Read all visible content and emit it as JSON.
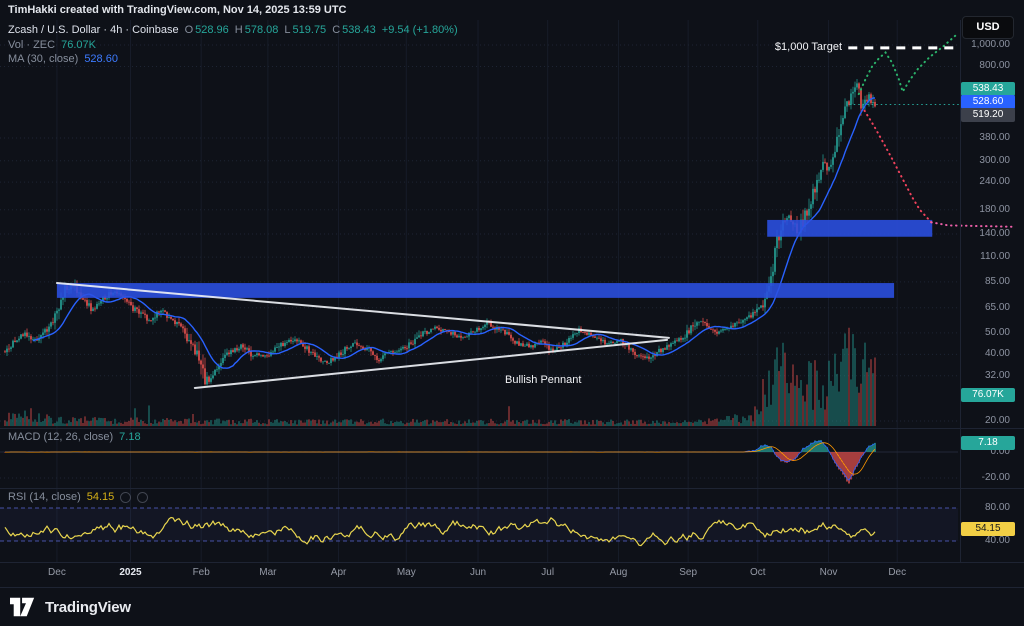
{
  "header": {
    "attribution": "TimHakki created with TradingView.com, Nov 14, 2025 13:59 UTC",
    "currency_button": "USD"
  },
  "legend": {
    "symbol": "Zcash / U.S. Dollar · 4h · Coinbase",
    "o_label": "O",
    "o": "528.96",
    "h_label": "H",
    "h": "578.08",
    "l_label": "L",
    "l": "519.75",
    "c_label": "C",
    "c": "538.43",
    "change": "+9.54 (+1.80%)",
    "volume_label": "Vol · ZEC",
    "volume_value": "76.07K",
    "ma_label": "MA (30, close)",
    "ma_value": "528.60"
  },
  "panes": {
    "macd": {
      "label": "MACD (12, 26, close)",
      "value": "7.18",
      "zero_label": "0.00",
      "minus_label": "-20.00"
    },
    "rsi": {
      "label": "RSI (14, close)",
      "value": "54.15",
      "upper_label": "80.00",
      "lower_label": "40.00",
      "icons": [
        "eye-icon",
        "more-icon"
      ]
    }
  },
  "price_axis": {
    "tags": [
      {
        "name": "last-price-tag",
        "text": "538.43",
        "bg": "#26a69a",
        "fg": "#ffffff"
      },
      {
        "name": "ma-price-tag",
        "text": "528.60",
        "bg": "#2962ff",
        "fg": "#ffffff"
      },
      {
        "name": "ref-price-tag",
        "text": "519.20",
        "bg": "#3c404b",
        "fg": "#ffffff"
      }
    ],
    "volume_tag": "76.07K",
    "macd_tag": "7.18",
    "rsi_tag": "54.15"
  },
  "footer": {
    "brand": "TradingView"
  },
  "chart_data": {
    "type": "candlestick",
    "symbol": "ZEC/USD",
    "interval": "4h",
    "exchange": "Coinbase",
    "scale": "log",
    "last": {
      "open": 528.96,
      "high": 578.08,
      "low": 519.75,
      "close": 538.43,
      "change_pct": 1.8,
      "change_abs": 9.54
    },
    "ma": {
      "period": 30,
      "value": 528.6
    },
    "volume_last": "76.07K",
    "y_ticks": [
      {
        "label": "1,000.00",
        "price": 1000
      },
      {
        "label": "800.00",
        "price": 800
      },
      {
        "label": "380.00",
        "price": 380
      },
      {
        "label": "300.00",
        "price": 300
      },
      {
        "label": "240.00",
        "price": 240
      },
      {
        "label": "180.00",
        "price": 180
      },
      {
        "label": "140.00",
        "price": 140
      },
      {
        "label": "110.00",
        "price": 110
      },
      {
        "label": "85.00",
        "price": 85
      },
      {
        "label": "65.00",
        "price": 65
      },
      {
        "label": "50.00",
        "price": 50
      },
      {
        "label": "40.00",
        "price": 40
      },
      {
        "label": "32.00",
        "price": 32
      },
      {
        "label": "20.00",
        "price": 20
      }
    ],
    "x_labels": [
      {
        "label": "Dec",
        "t": 0.0555,
        "bold": false
      },
      {
        "label": "2025",
        "t": 0.1326,
        "bold": true
      },
      {
        "label": "Feb",
        "t": 0.2067,
        "bold": false
      },
      {
        "label": "Mar",
        "t": 0.2766,
        "bold": false
      },
      {
        "label": "Apr",
        "t": 0.3507,
        "bold": false
      },
      {
        "label": "May",
        "t": 0.4217,
        "bold": false
      },
      {
        "label": "Jun",
        "t": 0.4969,
        "bold": false
      },
      {
        "label": "Jul",
        "t": 0.5699,
        "bold": false
      },
      {
        "label": "Aug",
        "t": 0.6441,
        "bold": false
      },
      {
        "label": "Sep",
        "t": 0.7171,
        "bold": false
      },
      {
        "label": "Oct",
        "t": 0.7901,
        "bold": false
      },
      {
        "label": "Nov",
        "t": 0.8643,
        "bold": false
      },
      {
        "label": "Dec",
        "t": 0.9363,
        "bold": false
      }
    ],
    "close_path": [
      [
        0.0,
        41
      ],
      [
        0.01,
        46
      ],
      [
        0.022,
        50
      ],
      [
        0.034,
        45
      ],
      [
        0.045,
        52
      ],
      [
        0.055,
        62
      ],
      [
        0.063,
        78
      ],
      [
        0.072,
        84
      ],
      [
        0.082,
        73
      ],
      [
        0.092,
        66
      ],
      [
        0.103,
        72
      ],
      [
        0.115,
        78
      ],
      [
        0.127,
        73
      ],
      [
        0.14,
        63
      ],
      [
        0.153,
        57
      ],
      [
        0.165,
        64
      ],
      [
        0.178,
        56
      ],
      [
        0.19,
        50
      ],
      [
        0.201,
        42
      ],
      [
        0.212,
        30
      ],
      [
        0.222,
        34
      ],
      [
        0.235,
        40
      ],
      [
        0.248,
        43
      ],
      [
        0.26,
        38
      ],
      [
        0.275,
        38
      ],
      [
        0.29,
        43
      ],
      [
        0.305,
        46
      ],
      [
        0.32,
        41
      ],
      [
        0.335,
        37
      ],
      [
        0.351,
        41
      ],
      [
        0.365,
        47
      ],
      [
        0.38,
        44
      ],
      [
        0.394,
        39
      ],
      [
        0.408,
        42
      ],
      [
        0.422,
        43
      ],
      [
        0.436,
        49
      ],
      [
        0.45,
        53
      ],
      [
        0.464,
        50
      ],
      [
        0.479,
        47
      ],
      [
        0.494,
        51
      ],
      [
        0.508,
        56
      ],
      [
        0.521,
        52
      ],
      [
        0.535,
        47
      ],
      [
        0.549,
        44
      ],
      [
        0.563,
        46
      ],
      [
        0.576,
        41
      ],
      [
        0.59,
        46
      ],
      [
        0.603,
        51
      ],
      [
        0.617,
        49
      ],
      [
        0.631,
        46
      ],
      [
        0.645,
        47
      ],
      [
        0.659,
        42
      ],
      [
        0.672,
        39
      ],
      [
        0.686,
        43
      ],
      [
        0.699,
        46
      ],
      [
        0.713,
        48
      ],
      [
        0.726,
        57
      ],
      [
        0.737,
        53
      ],
      [
        0.748,
        50
      ],
      [
        0.76,
        52
      ],
      [
        0.772,
        56
      ],
      [
        0.783,
        60
      ],
      [
        0.79,
        64
      ],
      [
        0.797,
        70
      ],
      [
        0.803,
        85
      ],
      [
        0.808,
        120
      ],
      [
        0.813,
        150
      ],
      [
        0.818,
        168
      ],
      [
        0.823,
        178
      ],
      [
        0.828,
        160
      ],
      [
        0.833,
        147
      ],
      [
        0.838,
        168
      ],
      [
        0.843,
        190
      ],
      [
        0.849,
        225
      ],
      [
        0.855,
        275
      ],
      [
        0.86,
        305
      ],
      [
        0.864,
        285
      ],
      [
        0.869,
        330
      ],
      [
        0.874,
        400
      ],
      [
        0.879,
        480
      ],
      [
        0.884,
        560
      ],
      [
        0.889,
        640
      ],
      [
        0.893,
        730
      ],
      [
        0.896,
        640
      ],
      [
        0.899,
        545
      ],
      [
        0.903,
        575
      ],
      [
        0.907,
        600
      ],
      [
        0.911,
        555
      ],
      [
        0.915,
        538
      ]
    ],
    "volume_path": [
      [
        0,
        0.06
      ],
      [
        0.02,
        0.14
      ],
      [
        0.05,
        0.06
      ],
      [
        0.15,
        0.05
      ],
      [
        0.3,
        0.04
      ],
      [
        0.5,
        0.045
      ],
      [
        0.65,
        0.04
      ],
      [
        0.75,
        0.05
      ],
      [
        0.786,
        0.09
      ],
      [
        0.8,
        0.38
      ],
      [
        0.812,
        0.52
      ],
      [
        0.824,
        0.42
      ],
      [
        0.836,
        0.3
      ],
      [
        0.848,
        0.42
      ],
      [
        0.86,
        0.38
      ],
      [
        0.872,
        0.5
      ],
      [
        0.882,
        0.62
      ],
      [
        0.887,
        1.0
      ],
      [
        0.893,
        0.6
      ],
      [
        0.9,
        0.52
      ],
      [
        0.908,
        0.62
      ],
      [
        0.915,
        0.5
      ]
    ],
    "macd": {
      "last": 7.18,
      "hist_path": [
        [
          0,
          0
        ],
        [
          0.775,
          0
        ],
        [
          0.788,
          2
        ],
        [
          0.797,
          6
        ],
        [
          0.804,
          4
        ],
        [
          0.811,
          -5
        ],
        [
          0.82,
          -9
        ],
        [
          0.83,
          -5
        ],
        [
          0.838,
          3
        ],
        [
          0.848,
          8
        ],
        [
          0.857,
          9
        ],
        [
          0.864,
          2
        ],
        [
          0.871,
          -8
        ],
        [
          0.879,
          -17
        ],
        [
          0.886,
          -25
        ],
        [
          0.892,
          -14
        ],
        [
          0.899,
          -4
        ],
        [
          0.906,
          4
        ],
        [
          0.915,
          7.18
        ]
      ]
    },
    "rsi": {
      "last": 54.15,
      "upper": 80,
      "lower": 40
    },
    "annotations": {
      "pennant": {
        "label": "Bullish Pennant",
        "t": 0.562,
        "price": 30.5
      },
      "target": {
        "label": "$1,000 Target",
        "price": 970,
        "t1": 0.885,
        "t2": 1.0
      },
      "trendlines": [
        {
          "t1": 0.0555,
          "p1": 84.0,
          "t2": 0.697,
          "p2": 47.5
        },
        {
          "t1": 0.2,
          "p1": 28.2,
          "t2": 0.695,
          "p2": 46.5
        }
      ],
      "zones": [
        {
          "t1": 0.0555,
          "t2": 0.933,
          "p1": 72,
          "p2": 84,
          "color": "#2b50e2"
        },
        {
          "t1": 0.8,
          "t2": 0.973,
          "p1": 136,
          "p2": 162,
          "color": "#2b50e2"
        }
      ],
      "current_price_line": {
        "t1": 0.886,
        "price": 538.43
      },
      "projections": {
        "green": [
          [
            0.896,
            600
          ],
          [
            0.903,
            700
          ],
          [
            0.91,
            800
          ],
          [
            0.917,
            870
          ],
          [
            0.924,
            925
          ],
          [
            0.931,
            830
          ],
          [
            0.938,
            700
          ],
          [
            0.942,
            615
          ],
          [
            0.95,
            700
          ],
          [
            0.958,
            780
          ],
          [
            0.97,
            880
          ],
          [
            0.985,
            990
          ],
          [
            1.0,
            1130
          ]
        ],
        "red": [
          [
            0.902,
            505
          ],
          [
            0.912,
            430
          ],
          [
            0.922,
            360
          ],
          [
            0.932,
            300
          ],
          [
            0.942,
            248
          ],
          [
            0.952,
            205
          ],
          [
            0.96,
            180
          ],
          [
            0.972,
            158
          ]
        ],
        "pink": [
          [
            0.972,
            158
          ],
          [
            0.99,
            153
          ],
          [
            1.056,
            151
          ]
        ]
      }
    }
  }
}
